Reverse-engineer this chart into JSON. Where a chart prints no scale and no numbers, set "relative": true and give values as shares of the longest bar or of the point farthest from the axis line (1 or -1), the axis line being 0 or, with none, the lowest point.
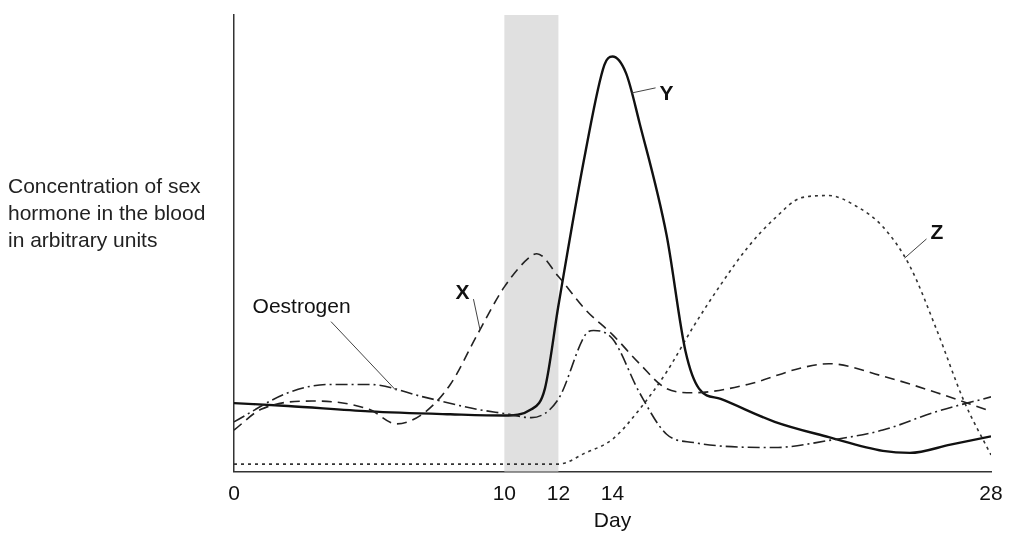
{
  "chart_data": {
    "type": "line",
    "xlabel": "Day",
    "ylabel": "Concentration of sex hormone in the blood in arbitrary units",
    "relative": true,
    "legend": false,
    "grid": false,
    "marker": "none",
    "xlim": [
      0,
      28
    ],
    "xticks": [
      0,
      10,
      12,
      14,
      28
    ],
    "bands": [
      {
        "axis": "x",
        "from": 10,
        "to": 12,
        "color": "#e0e0e0"
      }
    ],
    "series": [
      {
        "name": "Oestrogen",
        "color": "#222222",
        "line_style": "dashdot",
        "x": [
          0,
          2,
          3.5,
          5,
          7,
          9,
          10,
          11,
          12,
          13,
          13.3,
          14,
          15,
          16,
          17,
          20,
          22,
          24,
          26,
          28
        ],
        "values": [
          0.12,
          0.19,
          0.21,
          0.21,
          0.18,
          0.15,
          0.14,
          0.13,
          0.175,
          0.33,
          0.34,
          0.32,
          0.19,
          0.09,
          0.07,
          0.058,
          0.075,
          0.1,
          0.145,
          0.18
        ]
      },
      {
        "name": "X",
        "color": "#222222",
        "line_style": "dashed",
        "x": [
          0,
          1,
          3,
          5,
          6,
          7,
          8,
          9,
          10,
          11,
          11.2,
          12,
          13,
          14,
          15,
          16,
          17,
          19,
          21,
          22,
          24,
          26,
          28
        ],
        "values": [
          0.1,
          0.15,
          0.17,
          0.15,
          0.115,
          0.14,
          0.21,
          0.33,
          0.445,
          0.52,
          0.525,
          0.47,
          0.39,
          0.33,
          0.26,
          0.2,
          0.19,
          0.21,
          0.25,
          0.26,
          0.23,
          0.19,
          0.145
        ]
      },
      {
        "name": "Y",
        "color": "#111111",
        "line_style": "solid",
        "x": [
          0,
          2,
          5,
          8,
          10,
          11,
          11.5,
          12,
          13,
          13.7,
          14,
          14.5,
          15,
          16,
          16.7,
          17.2,
          18,
          20,
          22,
          24,
          25,
          26.5,
          28
        ],
        "values": [
          0.165,
          0.158,
          0.145,
          0.138,
          0.135,
          0.15,
          0.2,
          0.4,
          0.77,
          0.98,
          1,
          0.96,
          0.84,
          0.57,
          0.29,
          0.2,
          0.175,
          0.12,
          0.083,
          0.05,
          0.045,
          0.065,
          0.085
        ]
      },
      {
        "name": "Z",
        "color": "#333333",
        "line_style": "dotted",
        "x": [
          0,
          6,
          12,
          13,
          14,
          15,
          16,
          17,
          18,
          19,
          20,
          21,
          22,
          23,
          24,
          25,
          26,
          27,
          28
        ],
        "values": [
          0.018,
          0.018,
          0.018,
          0.045,
          0.078,
          0.15,
          0.24,
          0.35,
          0.45,
          0.54,
          0.61,
          0.66,
          0.665,
          0.64,
          0.59,
          0.495,
          0.34,
          0.17,
          0.04
        ]
      }
    ]
  }
}
